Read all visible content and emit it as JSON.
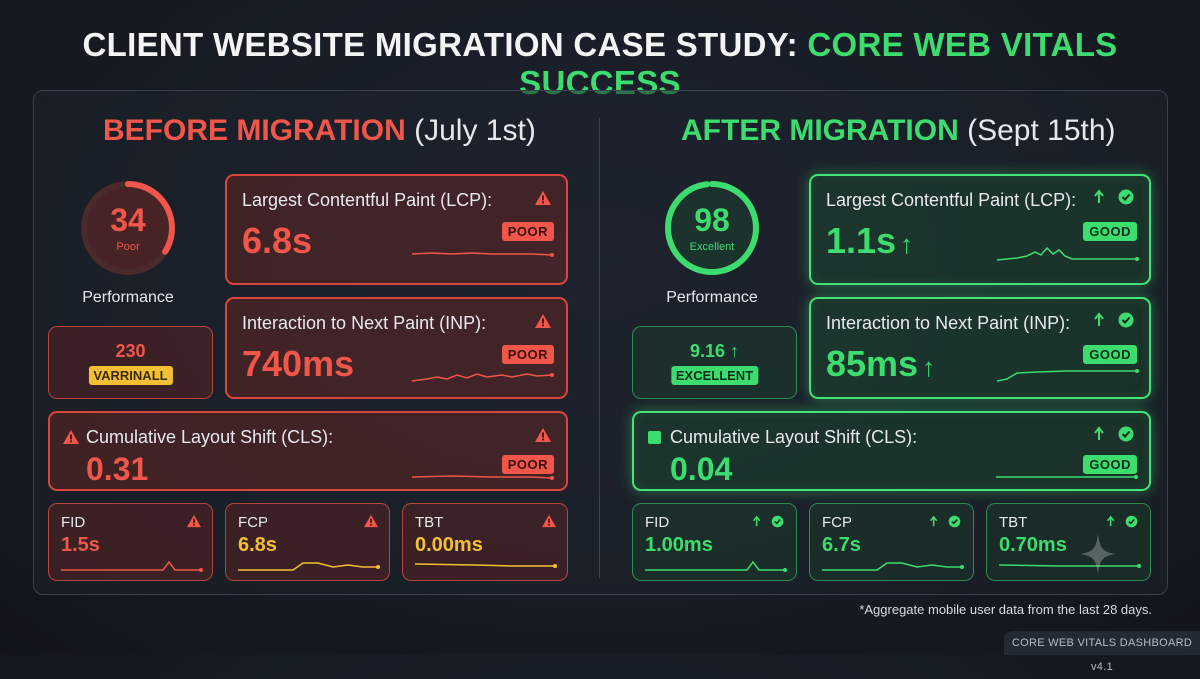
{
  "title": {
    "main": "CLIENT WEBSITE MIGRATION CASE STUDY:",
    "accent": "CORE WEB VITALS SUCCESS"
  },
  "before": {
    "heading": "BEFORE MIGRATION",
    "date": "(July 1st)",
    "score": "34",
    "score_label": "Poor",
    "score_fraction": 0.34,
    "perf_label": "Performance",
    "aux_value": "230",
    "aux_tag": "VARRINALL",
    "lcp": {
      "label": "Largest Contentful Paint (LCP):",
      "value": "6.8s",
      "badge": "POOR"
    },
    "inp": {
      "label": "Interaction to Next Paint (INP):",
      "value": "740ms",
      "badge": "POOR"
    },
    "cls": {
      "label": "Cumulative Layout Shift (CLS):",
      "value": "0.31",
      "badge": "POOR"
    },
    "fid": {
      "label": "FID",
      "value": "1.5s"
    },
    "fcp": {
      "label": "FCP",
      "value": "6.8s"
    },
    "tbt": {
      "label": "TBT",
      "value": "0.00ms"
    }
  },
  "after": {
    "heading": "AFTER MIGRATION",
    "date": "(Sept 15th)",
    "score": "98",
    "score_label": "Excellent",
    "score_fraction": 0.98,
    "perf_label": "Performance",
    "aux_value": "9.16",
    "aux_arrow": "↑",
    "aux_tag": "EXCELLENT",
    "lcp": {
      "label": "Largest Contentful Paint (LCP):",
      "value": "1.1s",
      "arrow": "↑",
      "badge": "GOOD"
    },
    "inp": {
      "label": "Interaction to Next Paint (INP):",
      "value": "85ms",
      "arrow": "↑",
      "badge": "GOOD"
    },
    "cls": {
      "label": "Cumulative Layout Shift (CLS):",
      "value": "0.04",
      "badge": "GOOD"
    },
    "fid": {
      "label": "FID",
      "value": "1.00ms"
    },
    "fcp": {
      "label": "FCP",
      "value": "6.7s"
    },
    "tbt": {
      "label": "TBT",
      "value": "0.70ms"
    }
  },
  "footnote": "*Aggregate mobile user data from the last 28 days.",
  "version": "CORE WEB VITALS DASHBOARD v4.1",
  "colors": {
    "poor": "#f0574a",
    "good": "#3ddc6e",
    "warn": "#f4c033"
  }
}
